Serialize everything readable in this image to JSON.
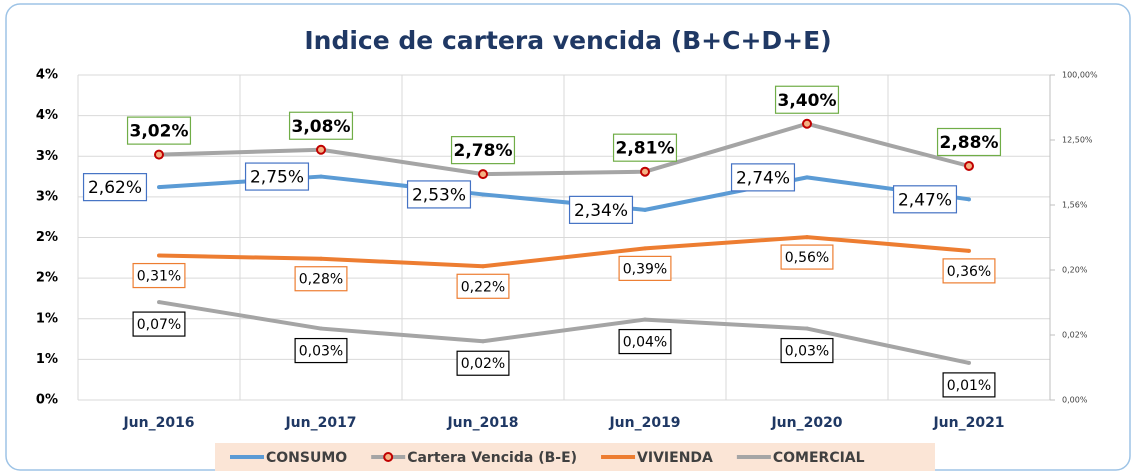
{
  "chart_data": {
    "type": "line",
    "title": "Indice de cartera vencida (B+C+D+E)",
    "categories": [
      "Jun_2016",
      "Jun_2017",
      "Jun_2018",
      "Jun_2019",
      "Jun_2020",
      "Jun_2021"
    ],
    "series": [
      {
        "name": "CONSUMO",
        "color": "#5b9bd5",
        "values": [
          2.62,
          2.75,
          2.53,
          2.34,
          2.74,
          2.47
        ],
        "value_labels": [
          "2,62%",
          "2,75%",
          "2,53%",
          "2,34%",
          "2,74%",
          "2,47%"
        ]
      },
      {
        "name": "Cartera Vencida (B-E)",
        "color": "#a5a5a5",
        "values": [
          3.02,
          3.08,
          2.78,
          2.81,
          3.4,
          2.88
        ],
        "value_labels": [
          "3,02%",
          "3,08%",
          "2,78%",
          "2,81%",
          "3,40%",
          "2,88%"
        ]
      },
      {
        "name": "VIVIENDA",
        "color": "#ed7d31",
        "axis": "y2",
        "values": [
          0.31,
          0.28,
          0.22,
          0.39,
          0.56,
          0.36
        ],
        "value_labels": [
          "0,31%",
          "0,28%",
          "0,22%",
          "0,39%",
          "0,56%",
          "0,36%"
        ]
      },
      {
        "name": "COMERCIAL",
        "color": "#a5a5a5",
        "axis": "y2",
        "values": [
          0.07,
          0.03,
          0.02,
          0.04,
          0.03,
          0.01
        ],
        "value_labels": [
          "0,07%",
          "0,03%",
          "0,02%",
          "0,04%",
          "0,03%",
          "0,01%"
        ]
      }
    ],
    "ylim": [
      0,
      4
    ],
    "yticks": [
      {
        "value": 0,
        "label": "0%"
      },
      {
        "value": 0.5,
        "label": "1%"
      },
      {
        "value": 1,
        "label": "1%"
      },
      {
        "value": 1.5,
        "label": "2%"
      },
      {
        "value": 2,
        "label": "2%"
      },
      {
        "value": 2.5,
        "label": "3%"
      },
      {
        "value": 3,
        "label": "3%"
      },
      {
        "value": 3.5,
        "label": "4%"
      },
      {
        "value": 4,
        "label": "4%"
      }
    ],
    "y2scale": "log",
    "y2lim": [
      0.0030517578125,
      100
    ],
    "y2ticks": [
      {
        "value": 0.0030517578125,
        "label": "0,00%"
      },
      {
        "value": 0.0244140625,
        "label": "0,02%"
      },
      {
        "value": 0.1953125,
        "label": "0,20%"
      },
      {
        "value": 1.5625,
        "label": "1,56%"
      },
      {
        "value": 12.5,
        "label": "12,50%"
      },
      {
        "value": 100,
        "label": "100,00%"
      }
    ],
    "grid": true
  }
}
